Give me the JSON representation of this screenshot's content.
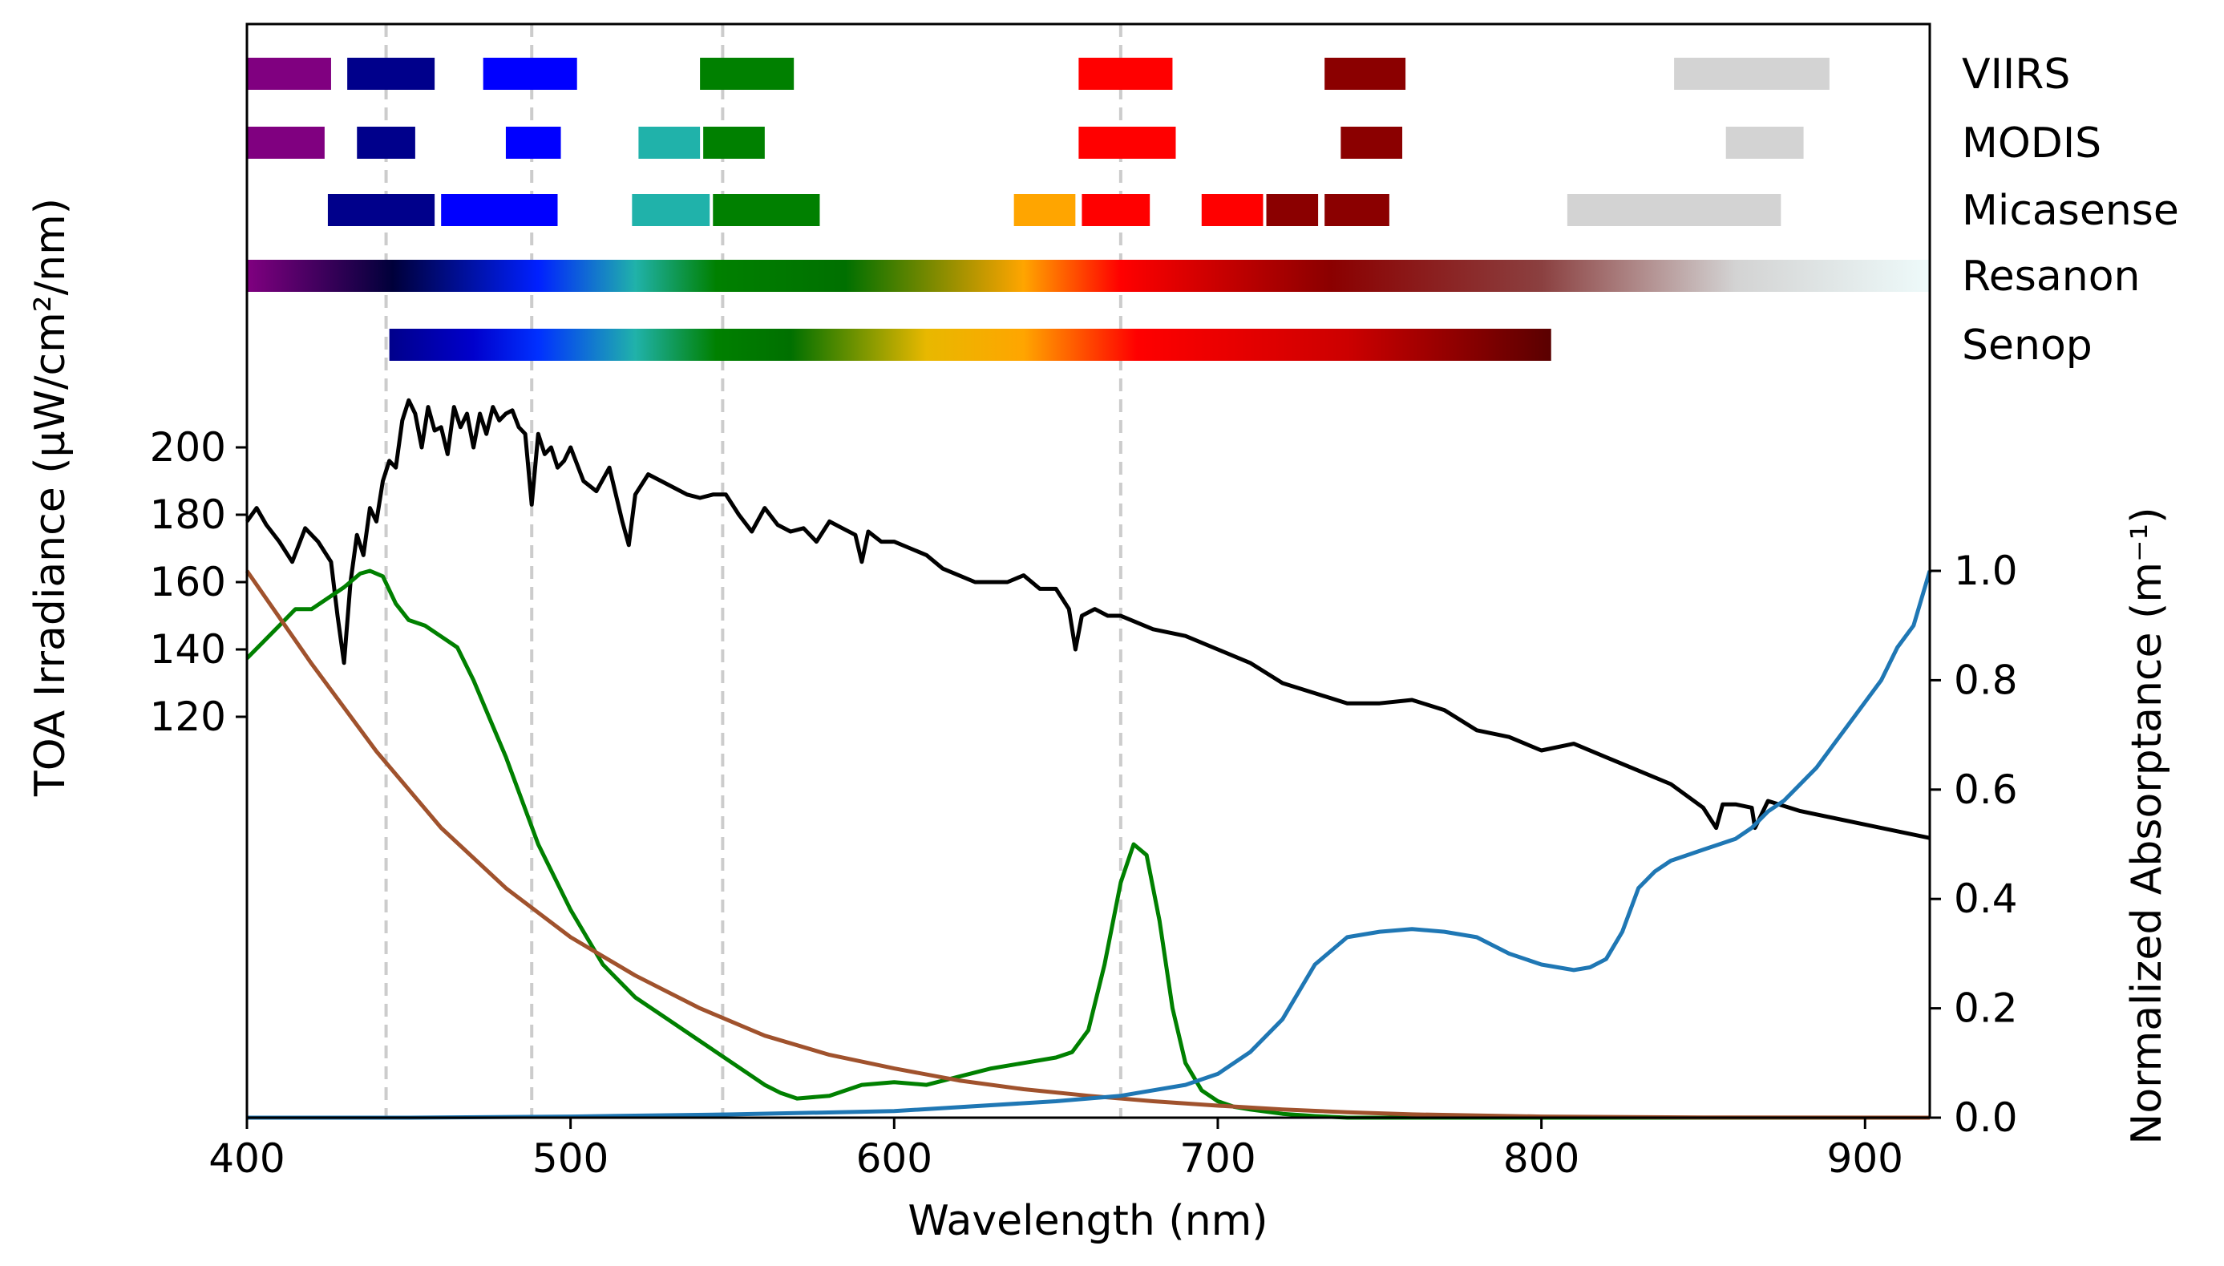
{
  "chart_data": {
    "type": "line",
    "xlabel": "Wavelength (nm)",
    "ylabel_left": "TOA Irradiance (μW/cm²/nm)",
    "ylabel_right": "Normalized Absorptance (m⁻¹)",
    "xlim": [
      400,
      920
    ],
    "x_ticks": [
      400,
      500,
      600,
      700,
      800,
      900
    ],
    "y_left_ticks": [
      120,
      140,
      160,
      180,
      200
    ],
    "y_right_ticks": [
      0.0,
      0.2,
      0.4,
      0.6,
      0.8,
      1.0
    ],
    "y_right_lim": [
      0,
      1.0
    ],
    "grid": false,
    "reference_lines_nm": [
      443,
      488,
      547,
      670
    ],
    "sensors": [
      {
        "name": "VIIRS",
        "bands": [
          {
            "start": 400,
            "end": 426,
            "color": "#800080"
          },
          {
            "start": 431,
            "end": 458,
            "color": "#00008b"
          },
          {
            "start": 473,
            "end": 502,
            "color": "#0000ff"
          },
          {
            "start": 540,
            "end": 569,
            "color": "#008000"
          },
          {
            "start": 657,
            "end": 686,
            "color": "#ff0000"
          },
          {
            "start": 733,
            "end": 758,
            "color": "#8b0000"
          },
          {
            "start": 841,
            "end": 889,
            "color": "#d3d3d3"
          }
        ]
      },
      {
        "name": "MODIS",
        "bands": [
          {
            "start": 400,
            "end": 424,
            "color": "#800080"
          },
          {
            "start": 434,
            "end": 452,
            "color": "#00008b"
          },
          {
            "start": 480,
            "end": 497,
            "color": "#0000ff"
          },
          {
            "start": 521,
            "end": 540,
            "color": "#20b2aa"
          },
          {
            "start": 541,
            "end": 560,
            "color": "#008000"
          },
          {
            "start": 657,
            "end": 687,
            "color": "#ff0000"
          },
          {
            "start": 738,
            "end": 757,
            "color": "#8b0000"
          },
          {
            "start": 857,
            "end": 881,
            "color": "#d3d3d3"
          }
        ]
      },
      {
        "name": "Micasense",
        "bands": [
          {
            "start": 425,
            "end": 458,
            "color": "#00008b"
          },
          {
            "start": 460,
            "end": 496,
            "color": "#0000ff"
          },
          {
            "start": 519,
            "end": 543,
            "color": "#20b2aa"
          },
          {
            "start": 544,
            "end": 577,
            "color": "#008000"
          },
          {
            "start": 637,
            "end": 656,
            "color": "#ffa500"
          },
          {
            "start": 658,
            "end": 679,
            "color": "#ff0000"
          },
          {
            "start": 695,
            "end": 714,
            "color": "#ff0000"
          },
          {
            "start": 715,
            "end": 731,
            "color": "#8b0000"
          },
          {
            "start": 733,
            "end": 753,
            "color": "#8b0000"
          },
          {
            "start": 808,
            "end": 874,
            "color": "#d3d3d3"
          }
        ]
      },
      {
        "name": "Resanon",
        "range": [
          400,
          920
        ],
        "gradient": [
          {
            "nm": 400,
            "color": "#800080"
          },
          {
            "nm": 445,
            "color": "#00003a"
          },
          {
            "nm": 490,
            "color": "#0020ff"
          },
          {
            "nm": 520,
            "color": "#20b2aa"
          },
          {
            "nm": 545,
            "color": "#008000"
          },
          {
            "nm": 585,
            "color": "#007000"
          },
          {
            "nm": 640,
            "color": "#ffa500"
          },
          {
            "nm": 670,
            "color": "#ff0000"
          },
          {
            "nm": 735,
            "color": "#8b0000"
          },
          {
            "nm": 800,
            "color": "#8b4040"
          },
          {
            "nm": 860,
            "color": "#d3d3d3"
          },
          {
            "nm": 920,
            "color": "#eefafa"
          }
        ]
      },
      {
        "name": "Senop",
        "range": [
          444,
          803
        ],
        "gradient": [
          {
            "nm": 444,
            "color": "#00008b"
          },
          {
            "nm": 470,
            "color": "#0000cc"
          },
          {
            "nm": 490,
            "color": "#0030ff"
          },
          {
            "nm": 520,
            "color": "#20b2aa"
          },
          {
            "nm": 545,
            "color": "#008000"
          },
          {
            "nm": 568,
            "color": "#007000"
          },
          {
            "nm": 610,
            "color": "#e8b800"
          },
          {
            "nm": 640,
            "color": "#ffa500"
          },
          {
            "nm": 675,
            "color": "#ff0000"
          },
          {
            "nm": 740,
            "color": "#cc0000"
          },
          {
            "nm": 803,
            "color": "#5a0000"
          }
        ]
      }
    ],
    "series": [
      {
        "axis": "left",
        "color": "#000000",
        "x": [
          400,
          403,
          406,
          410,
          414,
          418,
          422,
          426,
          428,
          430,
          432,
          434,
          436,
          438,
          440,
          442,
          444,
          446,
          448,
          450,
          452,
          454,
          456,
          458,
          460,
          462,
          464,
          466,
          468,
          470,
          472,
          474,
          476,
          478,
          480,
          482,
          484,
          486,
          488,
          490,
          492,
          494,
          496,
          498,
          500,
          504,
          508,
          512,
          516,
          518,
          520,
          524,
          528,
          532,
          536,
          540,
          544,
          548,
          552,
          556,
          560,
          564,
          568,
          572,
          576,
          580,
          584,
          588,
          590,
          592,
          596,
          600,
          605,
          610,
          615,
          620,
          625,
          630,
          635,
          640,
          645,
          650,
          654,
          656,
          658,
          662,
          666,
          670,
          680,
          690,
          700,
          710,
          720,
          730,
          740,
          750,
          760,
          770,
          780,
          790,
          800,
          810,
          820,
          830,
          840,
          850,
          854,
          856,
          860,
          865,
          866,
          870,
          880,
          890,
          900,
          910,
          920
        ],
        "y": [
          178,
          182,
          177,
          172,
          166,
          176,
          172,
          166,
          150,
          136,
          160,
          174,
          168,
          182,
          178,
          190,
          196,
          194,
          208,
          214,
          210,
          200,
          212,
          205,
          206,
          198,
          212,
          206,
          210,
          200,
          210,
          204,
          212,
          208,
          210,
          211,
          206,
          204,
          183,
          204,
          198,
          200,
          194,
          196,
          200,
          190,
          187,
          194,
          178,
          171,
          186,
          192,
          190,
          188,
          186,
          185,
          186,
          186,
          180,
          175,
          182,
          177,
          175,
          176,
          172,
          178,
          176,
          174,
          166,
          175,
          172,
          172,
          170,
          168,
          164,
          162,
          160,
          160,
          160,
          162,
          158,
          158,
          152,
          140,
          150,
          152,
          150,
          150,
          146,
          144,
          140,
          136,
          130,
          127,
          124,
          124,
          125,
          122,
          116,
          114,
          110,
          112,
          108,
          104,
          100,
          93,
          87,
          94,
          94,
          93,
          87,
          95,
          92,
          90,
          88,
          86,
          84
        ]
      },
      {
        "axis": "right",
        "color": "#008000",
        "x": [
          400,
          405,
          410,
          415,
          420,
          425,
          430,
          435,
          438,
          442,
          446,
          450,
          455,
          460,
          465,
          470,
          475,
          480,
          485,
          490,
          500,
          510,
          520,
          530,
          540,
          550,
          555,
          560,
          565,
          570,
          580,
          590,
          600,
          610,
          620,
          630,
          640,
          650,
          655,
          660,
          665,
          670,
          674,
          678,
          682,
          686,
          690,
          695,
          700,
          705,
          710,
          720,
          730,
          740,
          760,
          800,
          920
        ],
        "y": [
          0.84,
          0.87,
          0.9,
          0.93,
          0.93,
          0.95,
          0.97,
          0.995,
          1.0,
          0.99,
          0.94,
          0.91,
          0.9,
          0.88,
          0.86,
          0.8,
          0.73,
          0.66,
          0.58,
          0.5,
          0.38,
          0.28,
          0.22,
          0.18,
          0.14,
          0.1,
          0.08,
          0.06,
          0.045,
          0.035,
          0.04,
          0.06,
          0.065,
          0.06,
          0.075,
          0.09,
          0.1,
          0.11,
          0.12,
          0.16,
          0.28,
          0.43,
          0.5,
          0.48,
          0.36,
          0.2,
          0.1,
          0.05,
          0.03,
          0.02,
          0.015,
          0.007,
          0.003,
          0.0,
          0.0,
          0.0,
          0.0
        ]
      },
      {
        "axis": "right",
        "color": "#a0522d",
        "x": [
          400,
          420,
          440,
          460,
          480,
          500,
          520,
          540,
          560,
          580,
          600,
          620,
          640,
          660,
          680,
          700,
          720,
          740,
          760,
          800,
          850,
          920
        ],
        "y": [
          1.0,
          0.83,
          0.67,
          0.53,
          0.42,
          0.33,
          0.26,
          0.2,
          0.15,
          0.115,
          0.09,
          0.068,
          0.052,
          0.04,
          0.03,
          0.022,
          0.015,
          0.01,
          0.006,
          0.002,
          0.0005,
          0.0
        ]
      },
      {
        "axis": "right",
        "color": "#1f77b4",
        "x": [
          400,
          450,
          500,
          550,
          600,
          650,
          670,
          690,
          700,
          710,
          720,
          730,
          740,
          750,
          760,
          770,
          780,
          790,
          800,
          810,
          815,
          820,
          825,
          830,
          835,
          840,
          845,
          850,
          855,
          860,
          865,
          870,
          875,
          880,
          885,
          890,
          895,
          900,
          905,
          910,
          915,
          918,
          920
        ],
        "y": [
          0.0,
          0.0,
          0.002,
          0.006,
          0.012,
          0.03,
          0.04,
          0.06,
          0.08,
          0.12,
          0.18,
          0.28,
          0.33,
          0.34,
          0.345,
          0.34,
          0.33,
          0.3,
          0.28,
          0.27,
          0.275,
          0.29,
          0.34,
          0.42,
          0.45,
          0.47,
          0.48,
          0.49,
          0.5,
          0.51,
          0.53,
          0.56,
          0.58,
          0.61,
          0.64,
          0.68,
          0.72,
          0.76,
          0.8,
          0.86,
          0.9,
          0.96,
          1.0
        ]
      }
    ]
  }
}
